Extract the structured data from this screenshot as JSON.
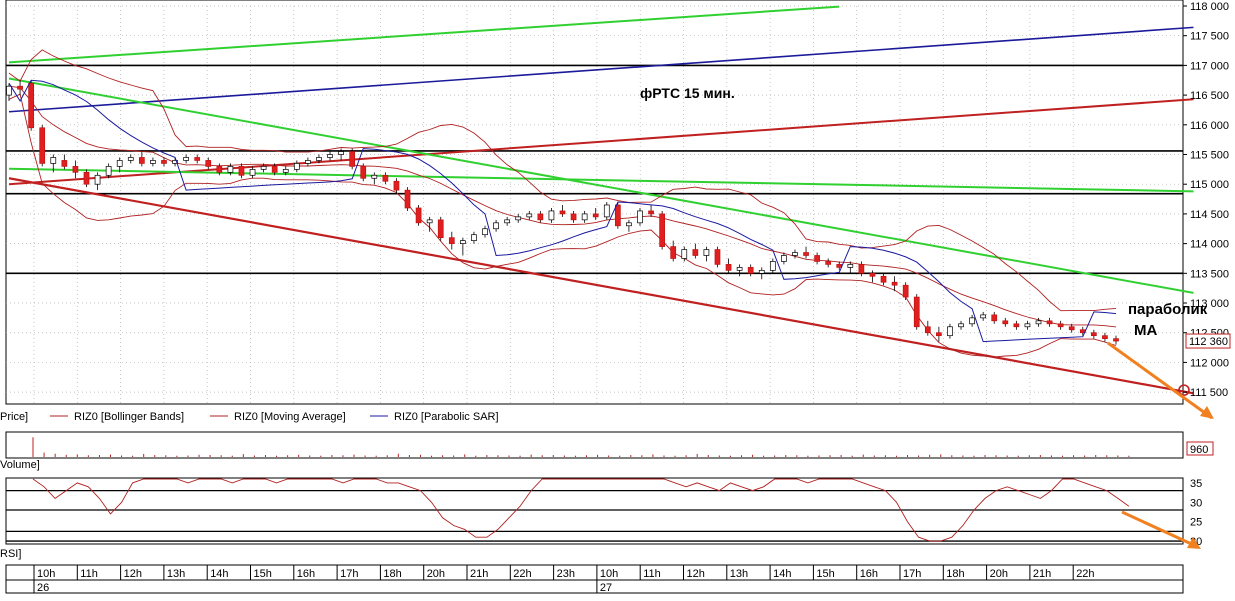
{
  "chart_data": {
    "type": "candlestick",
    "title": "фРТС   15 мин.",
    "annotations": [
      {
        "text": "параболик",
        "target": "Parabolic SAR"
      },
      {
        "text": "МА",
        "target": "Moving Average"
      }
    ],
    "last_price_label": "112 360",
    "last_price": 112360,
    "y_axis": {
      "min": 111300,
      "max": 118000,
      "side": "right",
      "tick_labels": [
        "118 000",
        "117 500",
        "117 000",
        "116 500",
        "116 000",
        "115 500",
        "115 000",
        "114 500",
        "114 000",
        "113 500",
        "113 000",
        "112 500",
        "112 000",
        "111 500"
      ],
      "tick_values": [
        118000,
        117500,
        117000,
        116500,
        116000,
        115500,
        115000,
        114500,
        114000,
        113500,
        113000,
        112500,
        112000,
        111500
      ]
    },
    "horizontal_levels": [
      117000,
      115560,
      114840,
      113500
    ],
    "legend": [
      {
        "label": "Price]",
        "color": "#000000"
      },
      {
        "label": "RIZ0 [Bollinger Bands]",
        "color": "#b22222"
      },
      {
        "label": "RIZ0 [Moving Average]",
        "color": "#b22222"
      },
      {
        "label": "RIZ0 [Parabolic SAR]",
        "color": "#1a1aa0"
      }
    ],
    "candles": [
      [
        116500,
        116700,
        116400,
        116650
      ],
      [
        116650,
        116750,
        116500,
        116600
      ],
      [
        116700,
        116750,
        115900,
        115950
      ],
      [
        115950,
        116000,
        115300,
        115350
      ],
      [
        115350,
        115500,
        115200,
        115450
      ],
      [
        115400,
        115500,
        115250,
        115300
      ],
      [
        115300,
        115400,
        115100,
        115200
      ],
      [
        115200,
        115250,
        114950,
        115000
      ],
      [
        115000,
        115200,
        114900,
        115150
      ],
      [
        115150,
        115350,
        115100,
        115300
      ],
      [
        115300,
        115450,
        115200,
        115400
      ],
      [
        115400,
        115500,
        115350,
        115450
      ],
      [
        115450,
        115550,
        115300,
        115350
      ],
      [
        115350,
        115450,
        115300,
        115400
      ],
      [
        115400,
        115450,
        115300,
        115350
      ],
      [
        115350,
        115450,
        115300,
        115400
      ],
      [
        115400,
        115500,
        115350,
        115450
      ],
      [
        115450,
        115500,
        115350,
        115400
      ],
      [
        115400,
        115450,
        115250,
        115300
      ],
      [
        115300,
        115350,
        115150,
        115200
      ],
      [
        115200,
        115350,
        115150,
        115300
      ],
      [
        115300,
        115350,
        115100,
        115150
      ],
      [
        115150,
        115300,
        115100,
        115250
      ],
      [
        115250,
        115350,
        115200,
        115300
      ],
      [
        115300,
        115350,
        115150,
        115200
      ],
      [
        115200,
        115300,
        115150,
        115250
      ],
      [
        115250,
        115400,
        115200,
        115350
      ],
      [
        115350,
        115450,
        115300,
        115400
      ],
      [
        115400,
        115500,
        115350,
        115450
      ],
      [
        115450,
        115550,
        115400,
        115500
      ],
      [
        115500,
        115600,
        115400,
        115550
      ],
      [
        115550,
        115600,
        115250,
        115300
      ],
      [
        115300,
        115350,
        115050,
        115100
      ],
      [
        115100,
        115200,
        115000,
        115150
      ],
      [
        115150,
        115200,
        115000,
        115050
      ],
      [
        115050,
        115100,
        114850,
        114900
      ],
      [
        114900,
        114950,
        114550,
        114600
      ],
      [
        114600,
        114650,
        114300,
        114350
      ],
      [
        114350,
        114450,
        114200,
        114400
      ],
      [
        114400,
        114450,
        114050,
        114100
      ],
      [
        114100,
        114200,
        113900,
        114000
      ],
      [
        114000,
        114100,
        113800,
        114050
      ],
      [
        114050,
        114200,
        114000,
        114150
      ],
      [
        114150,
        114300,
        114100,
        114250
      ],
      [
        114250,
        114400,
        114200,
        114350
      ],
      [
        114350,
        114450,
        114300,
        114400
      ],
      [
        114400,
        114500,
        114350,
        114450
      ],
      [
        114450,
        114550,
        114400,
        114500
      ],
      [
        114500,
        114550,
        114350,
        114400
      ],
      [
        114400,
        114600,
        114350,
        114550
      ],
      [
        114550,
        114650,
        114450,
        114500
      ],
      [
        114500,
        114550,
        114350,
        114400
      ],
      [
        114400,
        114550,
        114350,
        114500
      ],
      [
        114500,
        114600,
        114400,
        114450
      ],
      [
        114450,
        114700,
        114400,
        114650
      ],
      [
        114650,
        114700,
        114250,
        114300
      ],
      [
        114300,
        114400,
        114200,
        114350
      ],
      [
        114350,
        114600,
        114300,
        114550
      ],
      [
        114550,
        114650,
        114450,
        114500
      ],
      [
        114500,
        114550,
        113900,
        113950
      ],
      [
        113950,
        114050,
        113700,
        113750
      ],
      [
        113750,
        113950,
        113700,
        113900
      ],
      [
        113900,
        114000,
        113750,
        113800
      ],
      [
        113800,
        113950,
        113700,
        113900
      ],
      [
        113900,
        113950,
        113600,
        113650
      ],
      [
        113650,
        113750,
        113500,
        113550
      ],
      [
        113550,
        113650,
        113450,
        113600
      ],
      [
        113600,
        113650,
        113450,
        113500
      ],
      [
        113500,
        113600,
        113400,
        113550
      ],
      [
        113550,
        113750,
        113500,
        113700
      ],
      [
        113700,
        113850,
        113650,
        113800
      ],
      [
        113800,
        113900,
        113750,
        113850
      ],
      [
        113850,
        113950,
        113750,
        113800
      ],
      [
        113800,
        113850,
        113650,
        113700
      ],
      [
        113700,
        113750,
        113600,
        113650
      ],
      [
        113650,
        113700,
        113550,
        113600
      ],
      [
        113600,
        113700,
        113500,
        113650
      ],
      [
        113650,
        113700,
        113450,
        113500
      ],
      [
        113500,
        113550,
        113350,
        113450
      ],
      [
        113450,
        113500,
        113300,
        113350
      ],
      [
        113350,
        113450,
        113200,
        113300
      ],
      [
        113300,
        113350,
        113050,
        113100
      ],
      [
        113100,
        113150,
        112550,
        112600
      ],
      [
        112600,
        112700,
        112450,
        112500
      ],
      [
        112500,
        112600,
        112350,
        112450
      ],
      [
        112450,
        112650,
        112400,
        112600
      ],
      [
        112600,
        112700,
        112550,
        112650
      ],
      [
        112650,
        112800,
        112600,
        112750
      ],
      [
        112750,
        112850,
        112700,
        112800
      ],
      [
        112800,
        112850,
        112650,
        112700
      ],
      [
        112700,
        112750,
        112600,
        112650
      ],
      [
        112650,
        112700,
        112550,
        112600
      ],
      [
        112600,
        112700,
        112550,
        112650
      ],
      [
        112650,
        112750,
        112600,
        112700
      ],
      [
        112700,
        112750,
        112600,
        112650
      ],
      [
        112650,
        112700,
        112550,
        112600
      ],
      [
        112600,
        112650,
        112500,
        112550
      ],
      [
        112550,
        112600,
        112450,
        112500
      ],
      [
        112500,
        112550,
        112400,
        112450
      ],
      [
        112450,
        112500,
        112350,
        112400
      ],
      [
        112400,
        112450,
        112300,
        112360
      ]
    ],
    "volume_label": "960",
    "volume": [
      900,
      200,
      150,
      100,
      120,
      80,
      90,
      110,
      70,
      60,
      140,
      90,
      80,
      60,
      70,
      100,
      90,
      80,
      60,
      130,
      70,
      90,
      60,
      80,
      100,
      70,
      60,
      90,
      80,
      110,
      70,
      60,
      80,
      150,
      90,
      100,
      60,
      80,
      70,
      120,
      60,
      90,
      80,
      70,
      60,
      110,
      80,
      90,
      70,
      60,
      80,
      100,
      70,
      60,
      90,
      80,
      120,
      70,
      60,
      80,
      140,
      90,
      70,
      60,
      80,
      100,
      60,
      70,
      90,
      80,
      60,
      70,
      80,
      90,
      60,
      110,
      70,
      80,
      60,
      90,
      70,
      100,
      120,
      80,
      70,
      60,
      90,
      80,
      70,
      60,
      80,
      90,
      70,
      60,
      80,
      70,
      90,
      80,
      70,
      60
    ],
    "rsi": {
      "min": 19.5,
      "max": 36,
      "tick_labels": [
        "35",
        "30",
        "25",
        "20"
      ],
      "tick_values": [
        35,
        30,
        25,
        20
      ],
      "levels": [
        33,
        28,
        22.5,
        20
      ],
      "values": [
        36,
        34,
        31,
        33,
        35,
        34,
        31,
        27,
        30,
        35,
        36,
        37,
        36,
        36,
        35,
        36,
        37,
        36,
        35,
        37,
        36,
        36,
        35,
        37,
        36,
        36,
        37,
        36,
        35,
        37,
        36,
        36,
        35,
        35,
        34,
        33,
        30,
        26,
        24,
        23,
        21,
        21,
        23,
        26,
        29,
        33,
        36,
        37,
        37,
        36,
        37,
        36,
        36,
        37,
        36,
        37,
        36,
        37,
        35,
        34,
        35,
        34,
        33,
        35,
        34,
        33,
        34,
        36,
        37,
        36,
        35,
        36,
        36,
        37,
        36,
        35,
        34,
        33,
        30,
        25,
        21,
        20,
        20,
        21,
        24,
        28,
        31,
        33,
        34,
        33,
        32,
        31,
        33,
        36,
        36,
        35,
        34,
        33,
        31,
        29
      ]
    },
    "x_axis": {
      "time_labels": [
        "10h",
        "11h",
        "12h",
        "13h",
        "14h",
        "15h",
        "16h",
        "17h",
        "18h",
        "20h",
        "21h",
        "22h",
        "23h",
        "10h",
        "11h",
        "12h",
        "13h",
        "14h",
        "15h",
        "16h",
        "17h",
        "18h",
        "20h",
        "21h",
        "22h"
      ],
      "date_labels": [
        "26",
        "27"
      ]
    },
    "panel_labels": {
      "price": "Price]",
      "volume": "Volume]",
      "rsi": "RSI]"
    }
  }
}
